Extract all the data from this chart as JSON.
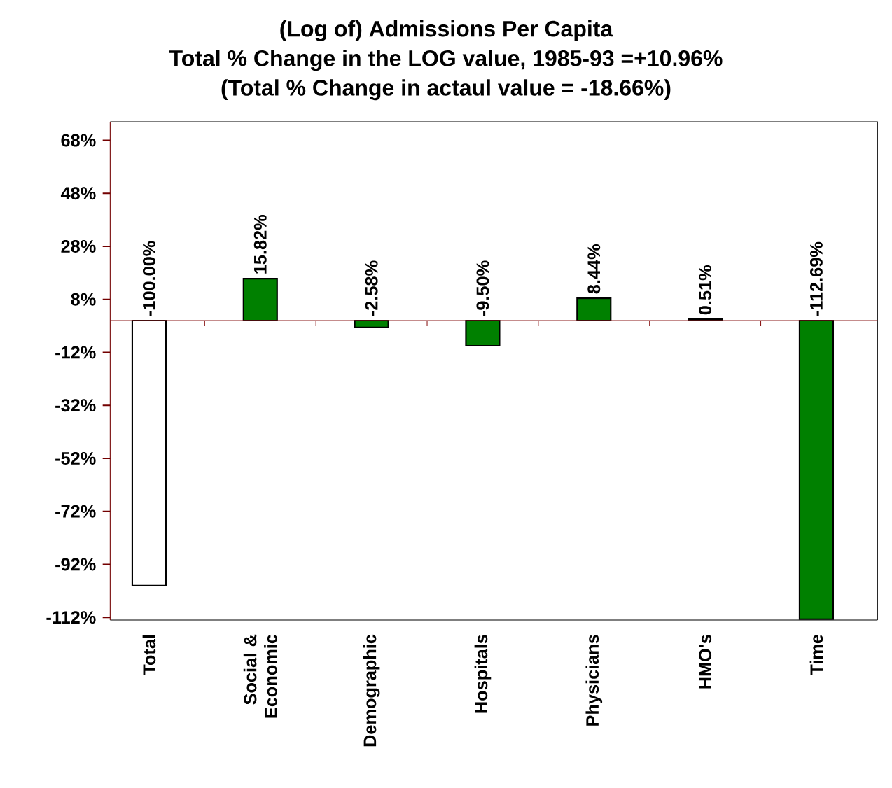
{
  "chart_data": {
    "type": "bar",
    "title": "(Log of) Admissions Per Capita",
    "subtitle": "Total % Change in the LOG value, 1985-93 =+10.96%",
    "annotations": [
      "(Total % Change in actaul value  = -18.66%)"
    ],
    "categories": [
      "Total",
      "Social & Economic",
      "Demographic",
      "Hospitals",
      "Physicians",
      "HMO's",
      "Time"
    ],
    "values": [
      -100.0,
      15.82,
      -2.58,
      -9.5,
      8.44,
      0.51,
      -112.69
    ],
    "colors": [
      "#ffffff",
      "#008000",
      "#008000",
      "#008000",
      "#008000",
      "#008000",
      "#008000"
    ],
    "value_labels": [
      "-100.00%",
      "15.82%",
      "-2.58%",
      "-9.50%",
      "8.44%",
      "0.51%",
      "-112.69%"
    ],
    "ref_lines": [
      {
        "axis": "y",
        "value": 0,
        "color": "#8b1a1a"
      }
    ],
    "ylim": [
      -113,
      75
    ],
    "yticks": [
      {
        "value": 68,
        "label": "68%"
      },
      {
        "value": 48,
        "label": "48%"
      },
      {
        "value": 28,
        "label": "28%"
      },
      {
        "value": 8,
        "label": "8%"
      },
      {
        "value": -12,
        "label": "-12%"
      },
      {
        "value": -32,
        "label": "-32%"
      },
      {
        "value": -52,
        "label": "-52%"
      },
      {
        "value": -72,
        "label": "-72%"
      },
      {
        "value": -92,
        "label": "-92%"
      },
      {
        "value": -112,
        "label": "-112%"
      }
    ]
  }
}
